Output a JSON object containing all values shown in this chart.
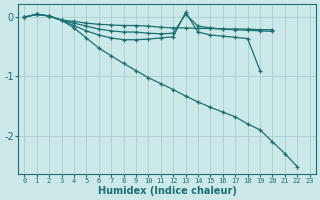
{
  "xlabel": "Humidex (Indice chaleur)",
  "background_color": "#cce8e8",
  "line_color": "#1a7070",
  "grid_color": "#aacece",
  "xlim": [
    -0.5,
    23.5
  ],
  "ylim": [
    -2.65,
    0.22
  ],
  "xticks": [
    0,
    1,
    2,
    3,
    4,
    5,
    6,
    7,
    8,
    9,
    10,
    11,
    12,
    13,
    14,
    15,
    16,
    17,
    18,
    19,
    20,
    21,
    22,
    23
  ],
  "yticks": [
    0,
    -1,
    -2
  ],
  "series": [
    {
      "x": [
        0,
        1,
        2,
        3,
        4,
        5,
        6,
        7,
        8,
        9,
        10,
        11,
        12,
        13,
        14,
        15,
        16,
        17,
        18,
        19,
        20
      ],
      "y": [
        0.0,
        0.05,
        0.02,
        -0.05,
        -0.07,
        -0.1,
        -0.12,
        -0.13,
        -0.14,
        -0.14,
        -0.15,
        -0.17,
        -0.18,
        -0.18,
        -0.19,
        -0.19,
        -0.2,
        -0.2,
        -0.2,
        -0.21,
        -0.21
      ]
    },
    {
      "x": [
        0,
        1,
        2,
        3,
        4,
        5,
        6,
        7,
        8,
        9,
        10,
        11,
        12,
        13,
        14,
        15,
        16,
        17,
        18,
        19,
        20
      ],
      "y": [
        0.0,
        0.05,
        0.02,
        -0.05,
        -0.1,
        -0.15,
        -0.2,
        -0.23,
        -0.25,
        -0.25,
        -0.27,
        -0.28,
        -0.27,
        0.05,
        -0.15,
        -0.18,
        -0.2,
        -0.21,
        -0.22,
        -0.23,
        -0.24
      ]
    },
    {
      "x": [
        0,
        1,
        2,
        3,
        4,
        5,
        6,
        7,
        8,
        9,
        10,
        11,
        12,
        13,
        14,
        15,
        16,
        17,
        18,
        19
      ],
      "y": [
        0.0,
        0.05,
        0.02,
        -0.05,
        -0.14,
        -0.23,
        -0.3,
        -0.35,
        -0.38,
        -0.38,
        -0.37,
        -0.35,
        -0.33,
        0.08,
        -0.25,
        -0.3,
        -0.32,
        -0.34,
        -0.36,
        -0.9
      ]
    },
    {
      "x": [
        0,
        1,
        2,
        3,
        4,
        5,
        6,
        7,
        8,
        9,
        10,
        11,
        12,
        13,
        14,
        15,
        16,
        17,
        18,
        19,
        20,
        21,
        22
      ],
      "y": [
        0.0,
        0.05,
        0.02,
        -0.05,
        -0.18,
        -0.35,
        -0.52,
        -0.65,
        -0.78,
        -0.9,
        -1.02,
        -1.12,
        -1.22,
        -1.33,
        -1.43,
        -1.52,
        -1.6,
        -1.68,
        -1.8,
        -1.9,
        -2.1,
        -2.3,
        -2.52
      ]
    }
  ]
}
